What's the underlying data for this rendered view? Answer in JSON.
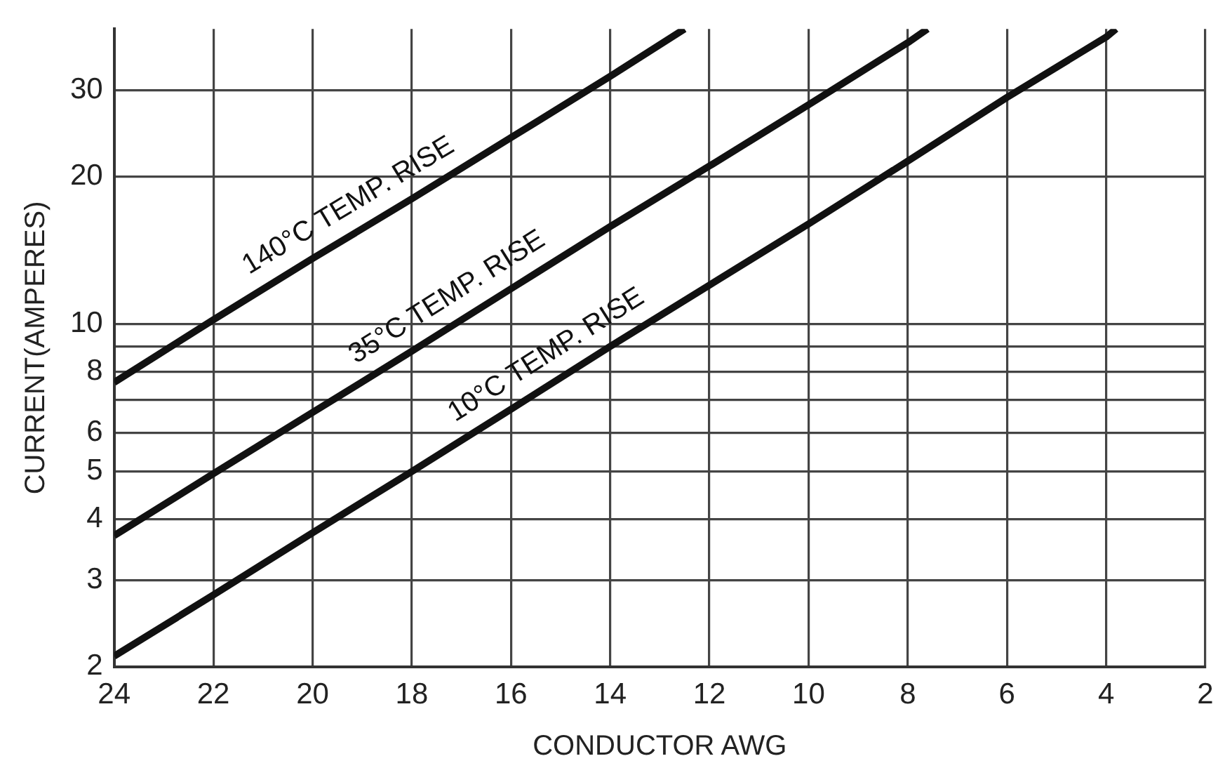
{
  "chart_data": {
    "type": "line",
    "xlabel": "CONDUCTOR AWG",
    "ylabel": "CURRENT(AMPERES)",
    "log": "y",
    "grid": true,
    "marker": "none",
    "line_style": "solid",
    "xlim": [
      24,
      2
    ],
    "xticks": [
      24,
      22,
      20,
      18,
      16,
      14,
      12,
      10,
      8,
      6,
      4,
      2
    ],
    "ylim": [
      2,
      40
    ],
    "yticks": [
      2,
      3,
      4,
      5,
      6,
      {
        "value": 7,
        "label": null
      },
      8,
      {
        "value": 9,
        "label": null
      },
      10,
      20,
      30
    ],
    "series": [
      {
        "name": "10°C TEMP. RISE",
        "color": "#111111",
        "x": [
          24,
          22,
          20,
          18,
          16,
          14,
          12,
          10,
          8,
          6,
          4,
          3.8
        ],
        "values": [
          2.1,
          2.8,
          3.75,
          5.0,
          6.7,
          9.0,
          12,
          16,
          21.5,
          29,
          38.5,
          40
        ]
      },
      {
        "name": "35°C TEMP. RISE",
        "color": "#111111",
        "x": [
          24,
          22,
          20,
          18,
          16,
          14,
          12,
          10,
          8,
          7.6
        ],
        "values": [
          3.7,
          4.95,
          6.6,
          8.8,
          11.8,
          15.8,
          21,
          28,
          37.5,
          40
        ]
      },
      {
        "name": "140°C TEMP. RISE",
        "color": "#111111",
        "x": [
          24,
          22,
          20,
          18,
          16,
          14,
          12.5
        ],
        "values": [
          7.6,
          10.2,
          13.6,
          18,
          24,
          32,
          40
        ]
      }
    ]
  }
}
